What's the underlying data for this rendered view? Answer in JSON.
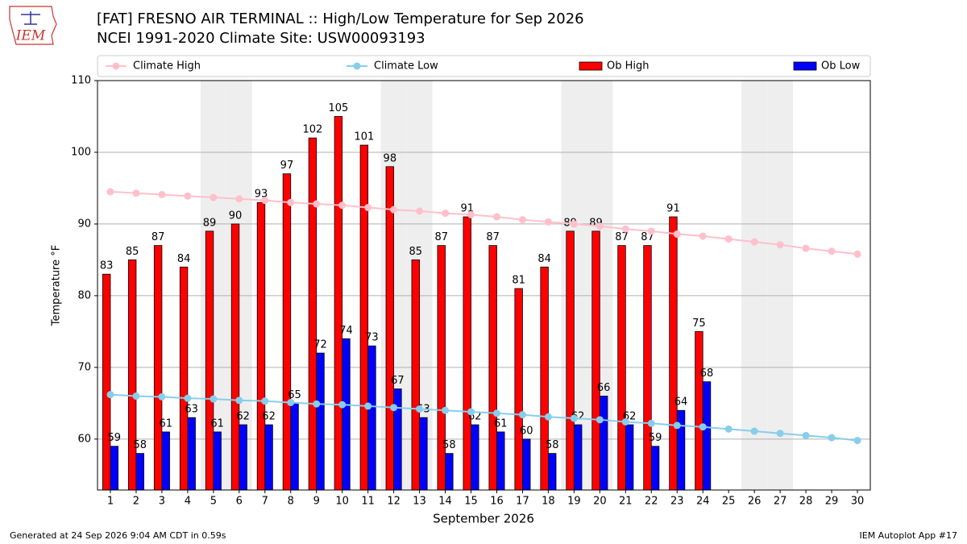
{
  "logo": "IEM",
  "footer_left": "Generated at 24 Sep 2026 9:04 AM CDT in 0.59s",
  "footer_right": "IEM Autoplot App #17",
  "chart_data": {
    "type": "bar",
    "title": "[FAT] FRESNO AIR TERMINAL :: High/Low Temperature for Sep 2026",
    "subtitle": "NCEI 1991-2020 Climate Site: USW00093193",
    "xlabel": "September 2026",
    "ylabel": "Temperature °F",
    "x": [
      1,
      2,
      3,
      4,
      5,
      6,
      7,
      8,
      9,
      10,
      11,
      12,
      13,
      14,
      15,
      16,
      17,
      18,
      19,
      20,
      21,
      22,
      23,
      24,
      25,
      26,
      27,
      28,
      29,
      30
    ],
    "xlim": [
      0.5,
      30.5
    ],
    "xticks": [
      1,
      2,
      3,
      4,
      5,
      6,
      7,
      8,
      9,
      10,
      11,
      12,
      13,
      14,
      15,
      16,
      17,
      18,
      19,
      20,
      21,
      22,
      23,
      24,
      25,
      26,
      27,
      28,
      29,
      30
    ],
    "ylim": [
      52.9,
      110
    ],
    "yticks": [
      60,
      70,
      80,
      90,
      100,
      110
    ],
    "grid": true,
    "weekend_days": [
      5,
      6,
      12,
      13,
      19,
      20,
      26,
      27
    ],
    "weekend_color": "#eeeeee",
    "series": [
      {
        "name": "Climate High",
        "type": "line",
        "color": "#ffc0cb",
        "values": [
          94.5,
          94.3,
          94.1,
          93.9,
          93.7,
          93.5,
          93.3,
          93.0,
          92.8,
          92.6,
          92.3,
          92.0,
          91.8,
          91.5,
          91.3,
          91.0,
          90.6,
          90.3,
          90.0,
          89.7,
          89.3,
          89.0,
          88.6,
          88.3,
          87.9,
          87.5,
          87.1,
          86.6,
          86.2,
          85.8
        ]
      },
      {
        "name": "Climate Low",
        "type": "line",
        "color": "#87ceeb",
        "values": [
          66.2,
          66.0,
          65.9,
          65.7,
          65.6,
          65.4,
          65.3,
          65.1,
          64.9,
          64.8,
          64.6,
          64.4,
          64.2,
          64.0,
          63.8,
          63.6,
          63.4,
          63.1,
          62.9,
          62.7,
          62.4,
          62.2,
          61.9,
          61.7,
          61.4,
          61.1,
          60.8,
          60.5,
          60.2,
          59.8
        ]
      },
      {
        "name": "Ob High",
        "type": "bar",
        "color": "#ff0000",
        "values": [
          83,
          85,
          87,
          84,
          89,
          90,
          93,
          97,
          102,
          105,
          101,
          98,
          85,
          87,
          91,
          87,
          81,
          84,
          89,
          89,
          87,
          87,
          91,
          75,
          null,
          null,
          null,
          null,
          null,
          null
        ]
      },
      {
        "name": "Ob Low",
        "type": "bar",
        "color": "#0000ff",
        "values": [
          59,
          58,
          61,
          63,
          61,
          62,
          62,
          65,
          72,
          74,
          73,
          67,
          63,
          58,
          62,
          61,
          60,
          58,
          62,
          66,
          62,
          59,
          64,
          68,
          null,
          null,
          null,
          null,
          null,
          null
        ]
      }
    ]
  }
}
